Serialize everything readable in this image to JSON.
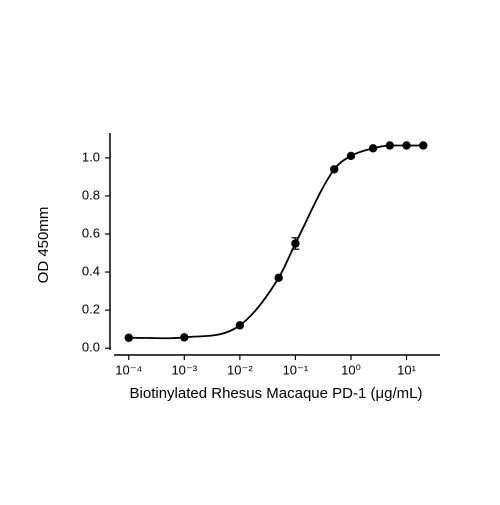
{
  "chart_data": {
    "type": "scatter",
    "x_label": "Biotinylated Rhesus Macaque PD-1 (μg/mL)",
    "y_label": "OD 450mm",
    "xscale": "log",
    "xlim": [
      5e-05,
      40
    ],
    "ylim": [
      -0.02,
      1.12
    ],
    "xticks": [
      {
        "value": 0.0001,
        "label": "10⁻⁴"
      },
      {
        "value": 0.001,
        "label": "10⁻³"
      },
      {
        "value": 0.01,
        "label": "10⁻²"
      },
      {
        "value": 0.1,
        "label": "10⁻¹"
      },
      {
        "value": 1,
        "label": "10⁰"
      },
      {
        "value": 10,
        "label": "10¹"
      }
    ],
    "yticks": [
      {
        "value": 0,
        "label": "0.0"
      },
      0.2,
      0.4,
      0.6,
      0.8,
      {
        "value": 1,
        "label": "1.0"
      }
    ],
    "color": "#000000",
    "x": [
      0.0001,
      0.001,
      0.01,
      0.05,
      0.1,
      0.5,
      1,
      2.5,
      5,
      10,
      20
    ],
    "values": [
      0.055,
      0.057,
      0.12,
      0.37,
      0.55,
      0.94,
      1.01,
      1.05,
      1.065,
      1.065,
      1.065
    ],
    "errors": [
      null,
      null,
      null,
      null,
      0.03,
      null,
      null,
      null,
      null,
      null,
      null
    ]
  }
}
